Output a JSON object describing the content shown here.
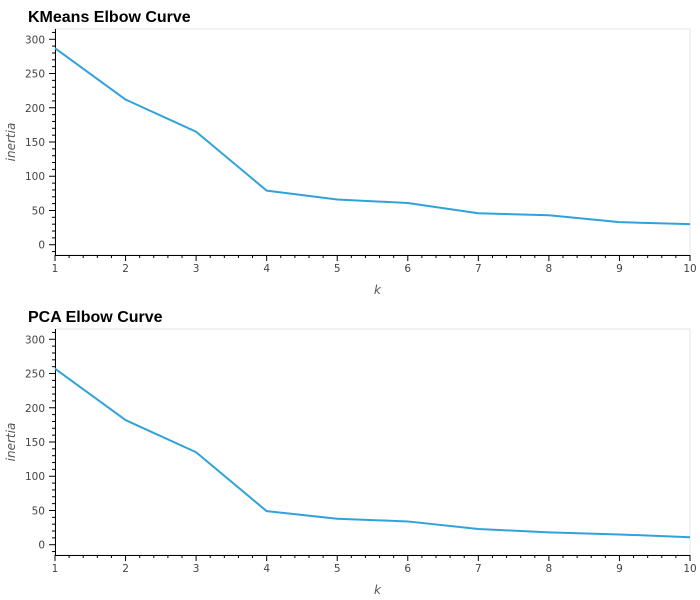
{
  "chart_data": [
    {
      "type": "line",
      "title": "KMeans Elbow Curve",
      "xlabel": "k",
      "ylabel": "inertia",
      "x": [
        1,
        2,
        3,
        4,
        5,
        6,
        7,
        8,
        9,
        10
      ],
      "series": [
        {
          "values": [
            287,
            212,
            165,
            79,
            66,
            61,
            46,
            43,
            33,
            30
          ]
        }
      ],
      "xlim": [
        1,
        10
      ],
      "ylim": [
        -15,
        315
      ],
      "x_ticks": [
        1,
        2,
        3,
        4,
        5,
        6,
        7,
        8,
        9,
        10
      ],
      "y_ticks": [
        0,
        50,
        100,
        150,
        200,
        250,
        300
      ],
      "grid": false,
      "legend": "none",
      "line_color": "#30a2da"
    },
    {
      "type": "line",
      "title": "PCA Elbow Curve",
      "xlabel": "k",
      "ylabel": "inertia",
      "x": [
        1,
        2,
        3,
        4,
        5,
        6,
        7,
        8,
        9,
        10
      ],
      "series": [
        {
          "values": [
            257,
            182,
            135,
            49,
            38,
            34,
            23,
            18,
            15,
            11
          ]
        }
      ],
      "xlim": [
        1,
        10
      ],
      "ylim": [
        -15,
        315
      ],
      "x_ticks": [
        1,
        2,
        3,
        4,
        5,
        6,
        7,
        8,
        9,
        10
      ],
      "y_ticks": [
        0,
        50,
        100,
        150,
        200,
        250,
        300
      ],
      "grid": false,
      "legend": "none",
      "line_color": "#30a2da"
    }
  ]
}
